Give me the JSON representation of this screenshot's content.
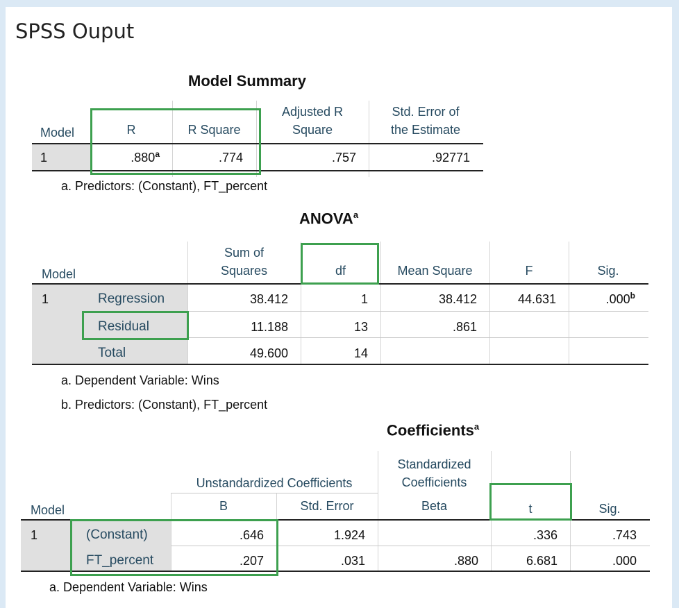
{
  "page_title": "SPSS Ouput",
  "model_summary": {
    "title": "Model Summary",
    "headers": {
      "model": "Model",
      "r": "R",
      "r_square": "R Square",
      "adj_r_1": "Adjusted R",
      "adj_r_2": "Square",
      "se_1": "Std. Error of",
      "se_2": "the Estimate"
    },
    "row": {
      "model": "1",
      "r": ".880",
      "r_note": "a",
      "r_square": ".774",
      "adj_r": ".757",
      "se": ".92771"
    },
    "footnote": "a. Predictors: (Constant), FT_percent"
  },
  "anova": {
    "title": "ANOVA",
    "title_note": "a",
    "headers": {
      "model": "Model",
      "ss_1": "Sum of",
      "ss_2": "Squares",
      "df": "df",
      "ms": "Mean Square",
      "f": "F",
      "sig": "Sig."
    },
    "rows": [
      {
        "model": "1",
        "label": "Regression",
        "ss": "38.412",
        "df": "1",
        "ms": "38.412",
        "f": "44.631",
        "sig": ".000",
        "sig_note": "b"
      },
      {
        "label": "Residual",
        "ss": "11.188",
        "df": "13",
        "ms": ".861"
      },
      {
        "label": "Total",
        "ss": "49.600",
        "df": "14"
      }
    ],
    "footnote_a": "a. Dependent Variable: Wins",
    "footnote_b": "b. Predictors: (Constant), FT_percent"
  },
  "coefficients": {
    "title": "Coefficients",
    "title_note": "a",
    "headers": {
      "model": "Model",
      "unstd": "Unstandardized Coefficients",
      "std_1": "Standardized",
      "std_2": "Coefficients",
      "b": "B",
      "se": "Std. Error",
      "beta": "Beta",
      "t": "t",
      "sig": "Sig."
    },
    "rows": [
      {
        "model": "1",
        "label": "(Constant)",
        "b": ".646",
        "se": "1.924",
        "beta": "",
        "t": ".336",
        "sig": ".743"
      },
      {
        "label": "FT_percent",
        "b": ".207",
        "se": ".031",
        "beta": ".880",
        "t": "6.681",
        "sig": ".000"
      }
    ],
    "footnote": "a. Dependent Variable: Wins"
  },
  "colors": {
    "highlight": "#3da04f",
    "header_text": "#264a60",
    "label_shade": "#e0e0e0"
  }
}
